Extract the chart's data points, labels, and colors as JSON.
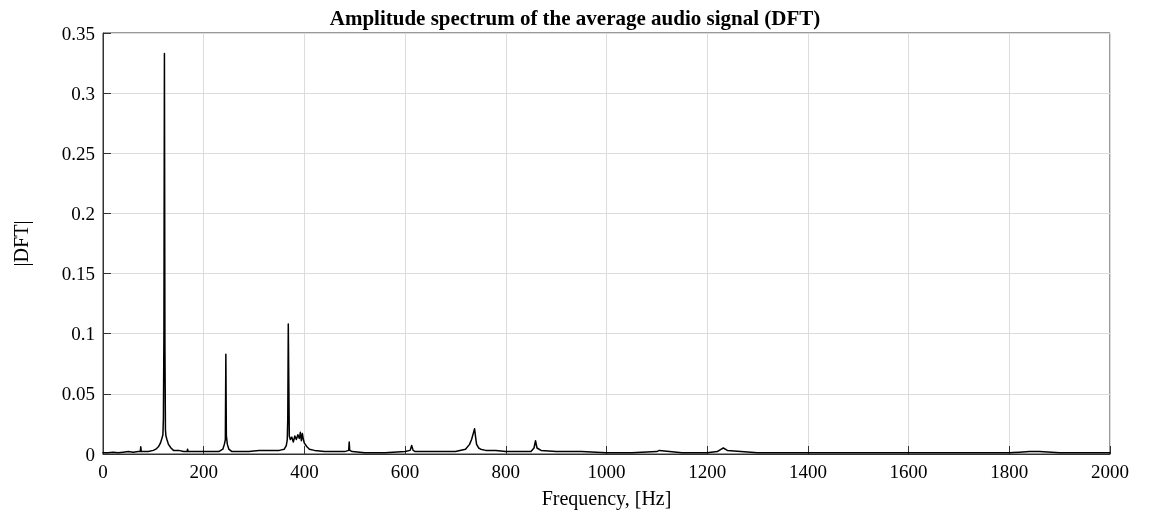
{
  "chart_data": {
    "type": "line",
    "title": "Amplitude spectrum of the average audio signal (DFT)",
    "xlabel": "Frequency, [Hz]",
    "ylabel": "|DFT|",
    "xlim": [
      0,
      2000
    ],
    "xticks": [
      0,
      200,
      400,
      600,
      800,
      1000,
      1200,
      1400,
      1600,
      1800,
      2000
    ],
    "ylim": [
      0,
      0.35
    ],
    "yticks": [
      0,
      0.05,
      0.1,
      0.15,
      0.2,
      0.25,
      0.3,
      0.35
    ],
    "grid": true,
    "marker": "none",
    "line_style": "solid",
    "series": [
      {
        "color": "#000000",
        "x": [
          0,
          10,
          20,
          30,
          40,
          50,
          60,
          70,
          74,
          75,
          76,
          80,
          90,
          100,
          105,
          110,
          114,
          117,
          119,
          120,
          121,
          122,
          123,
          124,
          125,
          127,
          130,
          135,
          140,
          150,
          160,
          167,
          168,
          169,
          175,
          185,
          200,
          215,
          230,
          238,
          241,
          243,
          244,
          245,
          247,
          250,
          256,
          270,
          290,
          310,
          330,
          350,
          360,
          364,
          366,
          367,
          368,
          369,
          370,
          372,
          375,
          378,
          381,
          384,
          387,
          390,
          392,
          394,
          396,
          398,
          400,
          405,
          410,
          420,
          440,
          460,
          480,
          488,
          489,
          490,
          495,
          520,
          560,
          600,
          610,
          613,
          616,
          620,
          650,
          700,
          720,
          728,
          732,
          736,
          738,
          740,
          742,
          746,
          750,
          760,
          780,
          800,
          820,
          850,
          856,
          859,
          862,
          870,
          900,
          950,
          1000,
          1050,
          1100,
          1105,
          1150,
          1200,
          1220,
          1228,
          1232,
          1240,
          1300,
          1400,
          1500,
          1600,
          1700,
          1800,
          1840,
          1850,
          1860,
          1900,
          2000
        ],
        "values": [
          0.001,
          0.001,
          0.0015,
          0.001,
          0.0015,
          0.002,
          0.0015,
          0.002,
          0.002,
          0.006,
          0.002,
          0.002,
          0.002,
          0.003,
          0.004,
          0.006,
          0.009,
          0.013,
          0.016,
          0.03,
          0.1,
          0.333,
          0.09,
          0.02,
          0.015,
          0.012,
          0.008,
          0.005,
          0.003,
          0.003,
          0.002,
          0.002,
          0.004,
          0.002,
          0.002,
          0.002,
          0.002,
          0.002,
          0.002,
          0.004,
          0.008,
          0.012,
          0.083,
          0.015,
          0.008,
          0.004,
          0.002,
          0.002,
          0.002,
          0.003,
          0.003,
          0.003,
          0.004,
          0.007,
          0.012,
          0.03,
          0.108,
          0.06,
          0.015,
          0.012,
          0.014,
          0.01,
          0.015,
          0.012,
          0.016,
          0.013,
          0.018,
          0.011,
          0.017,
          0.012,
          0.009,
          0.006,
          0.004,
          0.003,
          0.002,
          0.002,
          0.002,
          0.003,
          0.01,
          0.003,
          0.002,
          0.001,
          0.001,
          0.002,
          0.003,
          0.007,
          0.003,
          0.002,
          0.002,
          0.002,
          0.004,
          0.008,
          0.012,
          0.018,
          0.021,
          0.014,
          0.008,
          0.005,
          0.004,
          0.003,
          0.003,
          0.002,
          0.002,
          0.002,
          0.005,
          0.011,
          0.005,
          0.003,
          0.002,
          0.002,
          0.001,
          0.001,
          0.002,
          0.003,
          0.001,
          0.001,
          0.002,
          0.004,
          0.005,
          0.003,
          0.001,
          0.001,
          0.001,
          0.001,
          0.001,
          0.001,
          0.002,
          0.002,
          0.002,
          0.001,
          0.001
        ]
      }
    ]
  }
}
